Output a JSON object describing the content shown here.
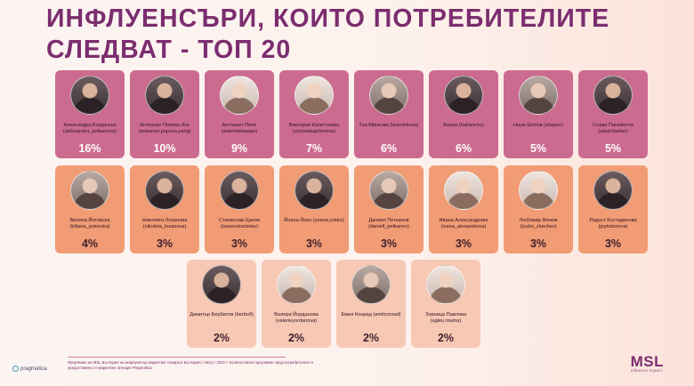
{
  "title": "ИНФЛУЕНСЪРИ, КОИТО ПОТРЕБИТЕЛИТЕ СЛЕДВАТ - ТОП 20",
  "influencers_row1": [
    {
      "name": "Александра Богданска (aleksandra_petkanova)",
      "pct": "16%"
    },
    {
      "name": "Антоанет Попова Янг (antoanet.popova.yang)",
      "pct": "10%"
    },
    {
      "name": "Антоанет Пепе (antoinettepepe)",
      "pct": "9%"
    },
    {
      "name": "Виктория Капитонова (victoriakapitonova)",
      "pct": "7%"
    },
    {
      "name": "Теа Минкова (teaminkova)",
      "pct": "6%"
    },
    {
      "name": "Балан (ballancho)",
      "pct": "6%"
    },
    {
      "name": "Наум Шопов (shopov)",
      "pct": "5%"
    },
    {
      "name": "Слави Панайотов (slavictasher)",
      "pct": "5%"
    }
  ],
  "influencers_row2": [
    {
      "name": "Виляна Йотовска (biliana_yotovska)",
      "pct": "4%"
    },
    {
      "name": "Николета Лозанова (nikoleta_lozanova)",
      "pct": "3%"
    },
    {
      "name": "Станислав Цанов (tsanovstanislav)",
      "pct": "3%"
    },
    {
      "name": "Йоана Йоко (yoana.yokko)",
      "pct": "3%"
    },
    {
      "name": "Даниел Петканов (daniell_petkanov)",
      "pct": "3%"
    },
    {
      "name": "Ивана Александрова (ivana_alexandrova)",
      "pct": "3%"
    },
    {
      "name": "Любомир Жечев (lyubo_zhechev)",
      "pct": "3%"
    },
    {
      "name": "Радост Костадинова (joytodorova)",
      "pct": "3%"
    }
  ],
  "influencers_row3": [
    {
      "name": "Димитър Бербатов (berbo9)",
      "pct": "2%"
    },
    {
      "name": "Валери Йорданова (valerieyordanova)",
      "pct": "2%"
    },
    {
      "name": "Емил Конрад (emilconrad)",
      "pct": "2%"
    },
    {
      "name": "Зорница Павлова (agleu.mama)",
      "pct": "2%"
    }
  ],
  "footnote": "Проучване на MSL България на инфлуенсър маркетинг пазара в България / Август 2022 г. Количествено проучване сред потребителите е предоставено от маркетинг агенция Pragmatica.",
  "pragmatica_label": "pragmatica",
  "msl": {
    "logo": "MSL",
    "tagline": "Influence Impact."
  },
  "colors": {
    "row1": "#cc6b90",
    "row2": "#f19c74",
    "row3": "#f7c8b4",
    "title": "#7b2d6f"
  }
}
